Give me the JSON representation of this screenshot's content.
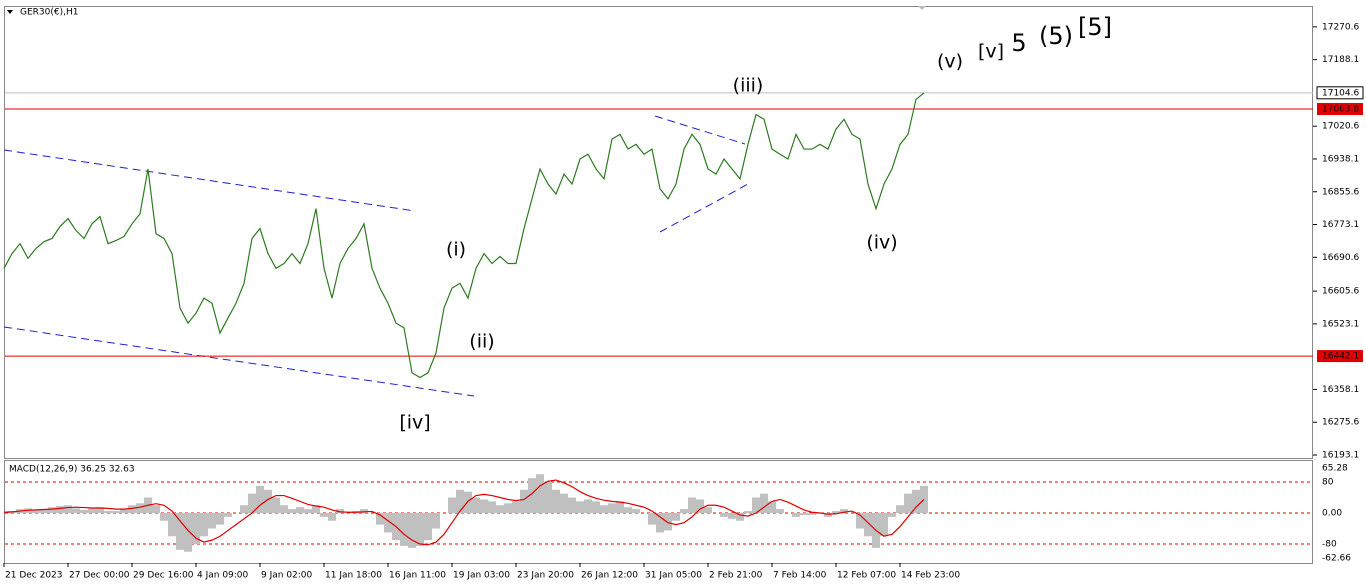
{
  "chart_data": [
    {
      "type": "line",
      "title": "GER30(€),H1",
      "color": "#2f7a22",
      "categories": [
        "21 Dec 2023",
        null,
        null,
        null,
        null,
        null,
        null,
        null,
        "27 Dec 00:00",
        null,
        null,
        null,
        null,
        null,
        null,
        null,
        "29 Dec 16:00",
        null,
        null,
        null,
        null,
        null,
        null,
        null,
        "4 Jan 09:00",
        null,
        null,
        null,
        null,
        null,
        null,
        null,
        "9 Jan 02:00",
        null,
        null,
        null,
        null,
        null,
        null,
        null,
        "11 Jan 18:00",
        null,
        null,
        null,
        null,
        null,
        null,
        null,
        "16 Jan 11:00",
        null,
        null,
        null,
        null,
        null,
        null,
        null,
        "19 Jan 03:00",
        null,
        null,
        null,
        null,
        null,
        null,
        null,
        "23 Jan 20:00",
        null,
        null,
        null,
        null,
        null,
        null,
        null,
        "26 Jan 12:00",
        null,
        null,
        null,
        null,
        null,
        null,
        null,
        "31 Jan 05:00",
        null,
        null,
        null,
        null,
        null,
        null,
        null,
        "2 Feb 21:00",
        null,
        null,
        null,
        null,
        null,
        null,
        null,
        "7 Feb 14:00",
        null,
        null,
        null,
        null,
        null,
        null,
        null,
        "12 Feb 07:00",
        null,
        null,
        null,
        null,
        null,
        null,
        null,
        "14 Feb 23:00",
        null,
        null,
        null
      ],
      "values": [
        16663,
        16700,
        16725,
        16688,
        16713,
        16730,
        16738,
        16768,
        16788,
        16758,
        16738,
        16775,
        16793,
        16725,
        16733,
        16743,
        16775,
        16800,
        16913,
        16750,
        16738,
        16700,
        16563,
        16525,
        16550,
        16588,
        16575,
        16500,
        16538,
        16575,
        16625,
        16738,
        16763,
        16700,
        16663,
        16675,
        16700,
        16675,
        16725,
        16813,
        16663,
        16588,
        16675,
        16713,
        16738,
        16775,
        16663,
        16613,
        16575,
        16525,
        16513,
        16400,
        16388,
        16400,
        16450,
        16563,
        16613,
        16625,
        16588,
        16663,
        16700,
        16675,
        16693,
        16675,
        16675,
        16763,
        16838,
        16913,
        16875,
        16850,
        16900,
        16875,
        16938,
        16950,
        16913,
        16888,
        16988,
        17000,
        16963,
        16975,
        16950,
        16963,
        16863,
        16838,
        16875,
        16963,
        17000,
        16975,
        16913,
        16900,
        16938,
        16913,
        16888,
        16975,
        17050,
        17038,
        16963,
        16950,
        16938,
        17000,
        16963,
        16963,
        16975,
        16963,
        17013,
        17038,
        17000,
        16988,
        16875,
        16813,
        16875,
        16913,
        16975,
        17000,
        17088,
        17104.6
      ],
      "ylim": [
        16185.6,
        17313
      ],
      "yticks": [
        17270.6,
        17188.1,
        17020.6,
        16938.1,
        16855.6,
        16773.1,
        16690.6,
        16605.6,
        16523.1,
        16358.1,
        16275.6,
        16193.1
      ],
      "grid": false,
      "last_price": 17104.6,
      "levels": [
        {
          "value": 17063.8,
          "color": "#e00000"
        },
        {
          "value": 16442.1,
          "color": "#e00000"
        }
      ],
      "annotations": [
        {
          "text": "(v)",
          "color": "#1a1ad0"
        },
        {
          "text": "[v]",
          "color": "#2a8a12"
        },
        {
          "text": "5",
          "color": "#1a1ad0"
        },
        {
          "text": "(5)",
          "color": "#e01010"
        },
        {
          "text": "[5]",
          "color": "#111111"
        },
        {
          "text": "(iii)",
          "color": "#1a1ad0"
        },
        {
          "text": "(iv)",
          "color": "#1a1ad0"
        },
        {
          "text": "(i)",
          "color": "#1a1ad0"
        },
        {
          "text": "(ii)",
          "color": "#1a1ad0"
        },
        {
          "text": "[iv]",
          "color": "#2a8a12"
        }
      ]
    },
    {
      "type": "macd",
      "title": "MACD(12,26,9) 36.25 32.63",
      "scale_max": 65.28,
      "scale_min": -62.66,
      "ylim": [
        -129,
        131.6
      ],
      "yticks": [
        80,
        {
          "value": 0,
          "label": "0.00"
        },
        -80
      ],
      "level_color": "#e00000",
      "series": [
        {
          "style": "histogram",
          "color": "#c0c0c0",
          "values": [
            0,
            5,
            10,
            12,
            8,
            10,
            15,
            18,
            20,
            12,
            8,
            12,
            15,
            5,
            5,
            10,
            20,
            25,
            40,
            20,
            -20,
            -60,
            -95,
            -100,
            -80,
            -60,
            -40,
            -30,
            -10,
            0,
            20,
            50,
            70,
            60,
            40,
            20,
            10,
            15,
            10,
            20,
            -10,
            -20,
            10,
            0,
            5,
            10,
            0,
            -30,
            -50,
            -70,
            -85,
            -90,
            -85,
            -70,
            -40,
            0,
            40,
            60,
            55,
            40,
            35,
            30,
            20,
            25,
            30,
            60,
            90,
            100,
            80,
            60,
            50,
            40,
            30,
            35,
            30,
            20,
            25,
            30,
            15,
            10,
            0,
            -30,
            -50,
            -45,
            -20,
            10,
            40,
            35,
            15,
            0,
            -10,
            -15,
            -20,
            5,
            40,
            50,
            30,
            10,
            0,
            -10,
            -5,
            -5,
            0,
            -10,
            5,
            10,
            0,
            -40,
            -60,
            -90,
            -60,
            -10,
            20,
            50,
            60,
            70
          ]
        },
        {
          "style": "line",
          "color": "#e00000",
          "values": [
            2,
            3,
            5,
            7,
            8,
            9,
            10,
            12,
            14,
            15,
            14,
            13,
            13,
            12,
            10,
            10,
            12,
            15,
            20,
            24,
            20,
            5,
            -20,
            -45,
            -65,
            -75,
            -70,
            -60,
            -45,
            -30,
            -15,
            0,
            20,
            35,
            45,
            45,
            38,
            30,
            22,
            18,
            15,
            8,
            3,
            2,
            2,
            3,
            4,
            -5,
            -20,
            -35,
            -55,
            -70,
            -80,
            -82,
            -75,
            -55,
            -25,
            5,
            30,
            45,
            48,
            45,
            40,
            35,
            32,
            35,
            50,
            70,
            82,
            85,
            78,
            68,
            55,
            45,
            38,
            33,
            30,
            28,
            25,
            20,
            15,
            5,
            -10,
            -25,
            -30,
            -25,
            -10,
            10,
            20,
            20,
            15,
            5,
            -5,
            -8,
            0,
            15,
            30,
            35,
            28,
            18,
            8,
            2,
            0,
            -3,
            -2,
            2,
            5,
            -5,
            -25,
            -45,
            -60,
            -55,
            -35,
            -10,
            15,
            35
          ]
        }
      ]
    }
  ]
}
